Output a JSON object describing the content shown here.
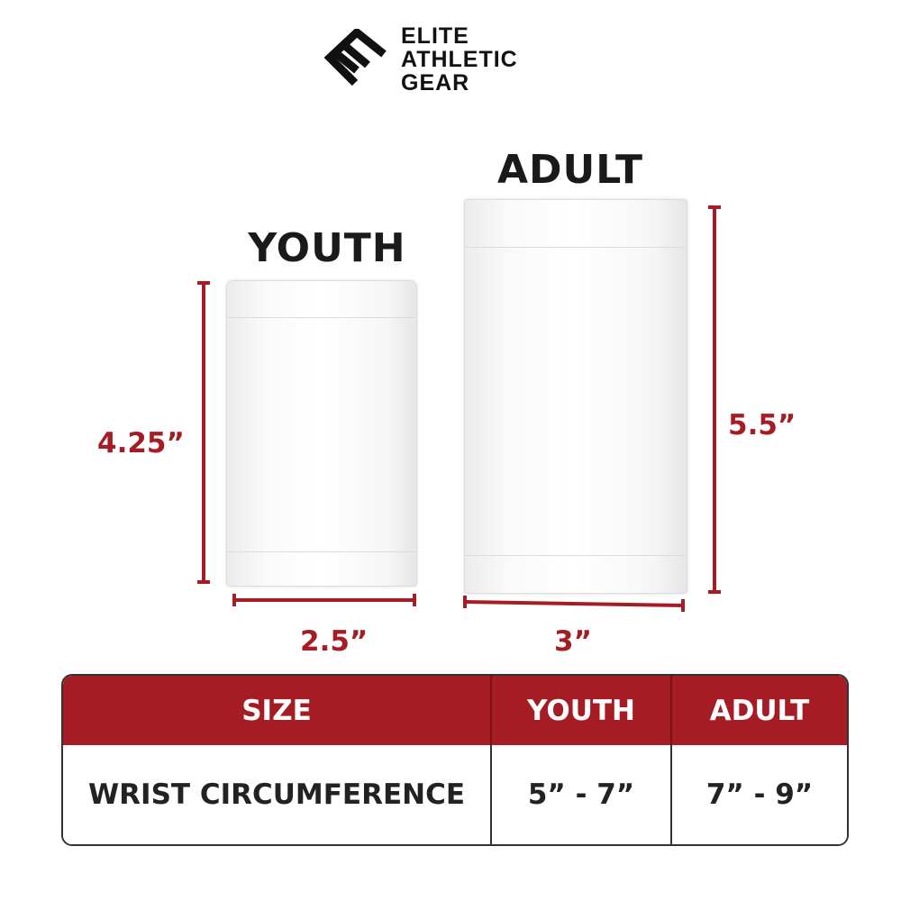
{
  "brand": {
    "lines": [
      "ELITE",
      "ATHLETIC",
      "GEAR"
    ]
  },
  "products": {
    "youth": {
      "title": "YOUTH",
      "height": "4.25”",
      "width": "2.5”"
    },
    "adult": {
      "title": "ADULT",
      "height": "5.5”",
      "width": "3”"
    }
  },
  "size_table": {
    "headers": [
      "SIZE",
      "YOUTH",
      "ADULT"
    ],
    "rows": [
      [
        "WRIST CIRCUMFERENCE",
        "5” - 7”",
        "7” - 9”"
      ]
    ]
  },
  "colors": {
    "accent": "#a51c24",
    "text": "#1a1a1a"
  }
}
